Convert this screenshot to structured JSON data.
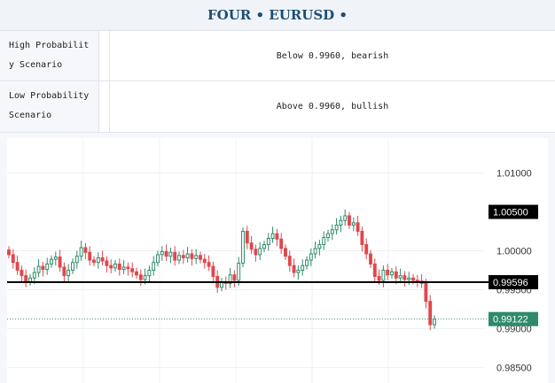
{
  "header": {
    "title": "FOUR • EURUSD •"
  },
  "table": {
    "rows": [
      {
        "label": "High Probability Scenario",
        "value": "Below 0.9960, bearish"
      },
      {
        "label": "Low Probability Scenario",
        "value": "Above 0.9960, bullish"
      }
    ]
  },
  "chart_data": {
    "type": "candlestick",
    "symbol": "EURUSD",
    "y_ticks": [
      "1.01000",
      "1.00000",
      "0.99500",
      "0.99000",
      "0.98500"
    ],
    "y_tick_values": [
      1.01,
      1.0,
      0.995,
      0.99,
      0.985
    ],
    "ylim": [
      0.983,
      1.0145
    ],
    "grid": true,
    "levels": [
      {
        "label": "1.00500",
        "value": 1.005,
        "style": "tag",
        "color": "#000000"
      },
      {
        "label": "0.99596",
        "value": 0.99596,
        "style": "solid-line",
        "color": "#000000"
      },
      {
        "label": "0.99122",
        "value": 0.99122,
        "style": "dotted-current",
        "color": "#2e8b6a"
      }
    ],
    "colors": {
      "up": "#2e8b6a",
      "down": "#e0474c"
    },
    "closes": [
      0.9995,
      0.9985,
      0.9975,
      0.9968,
      0.996,
      0.9965,
      0.9972,
      0.998,
      0.9976,
      0.9983,
      0.9989,
      0.9992,
      0.9979,
      0.9968,
      0.9975,
      0.9985,
      0.9993,
      1.0004,
      0.9998,
      0.9988,
      0.9985,
      0.9991,
      0.9987,
      0.9981,
      0.9978,
      0.9983,
      0.9976,
      0.9979,
      0.9977,
      0.9973,
      0.9969,
      0.9963,
      0.9968,
      0.9975,
      0.9985,
      0.9995,
      0.9999,
      0.9993,
      0.9998,
      0.9988,
      0.9994,
      0.9991,
      0.9996,
      0.999,
      0.9994,
      0.9989,
      0.9985,
      0.998,
      0.9967,
      0.9953,
      0.996,
      0.9958,
      0.9969,
      0.9962,
      0.9984,
      1.0025,
      1.001,
      1.0002,
      0.9995,
      1.0003,
      1.0008,
      1.0016,
      1.0022,
      1.0015,
      1.0003,
      0.9993,
      0.9981,
      0.9972,
      0.9975,
      0.9981,
      0.9988,
      0.9996,
      1.0003,
      1.0008,
      1.0017,
      1.0022,
      1.0027,
      1.0033,
      1.0039,
      1.0045,
      1.0033,
      1.0036,
      1.0025,
      1.0008,
      0.9996,
      0.9983,
      0.9967,
      0.9962,
      0.9975,
      0.9969,
      0.9973,
      0.9965,
      0.9968,
      0.9963,
      0.9965,
      0.9962,
      0.9961,
      0.9958,
      0.9935,
      0.9905,
      0.9912
    ]
  }
}
